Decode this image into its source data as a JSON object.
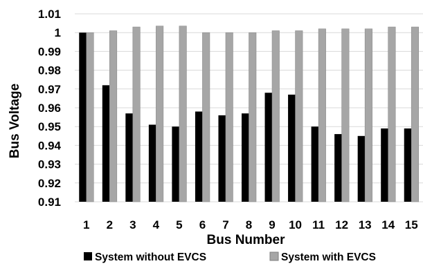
{
  "chart_data": {
    "type": "bar",
    "xlabel": "Bus Number",
    "ylabel": "Bus Voltage",
    "ylim": [
      0.91,
      1.01
    ],
    "yticks": [
      "0.91",
      "0.92",
      "0.93",
      "0.94",
      "0.95",
      "0.96",
      "0.97",
      "0.98",
      "0.99",
      "1",
      "1.01"
    ],
    "categories": [
      "1",
      "2",
      "3",
      "4",
      "5",
      "6",
      "7",
      "8",
      "9",
      "10",
      "11",
      "12",
      "13",
      "14",
      "15"
    ],
    "grid": true,
    "legend_position": "bottom",
    "series": [
      {
        "name": "System without EVCS",
        "color": "#000000",
        "values": [
          1.0,
          0.972,
          0.957,
          0.951,
          0.95,
          0.958,
          0.956,
          0.957,
          0.968,
          0.967,
          0.95,
          0.946,
          0.945,
          0.949,
          0.949
        ]
      },
      {
        "name": "System with EVCS",
        "color": "#a6a6a6",
        "values": [
          1.0,
          1.001,
          1.003,
          1.0035,
          1.0035,
          1.0,
          1.0,
          1.0,
          1.001,
          1.001,
          1.002,
          1.002,
          1.002,
          1.003,
          1.003
        ]
      }
    ]
  }
}
